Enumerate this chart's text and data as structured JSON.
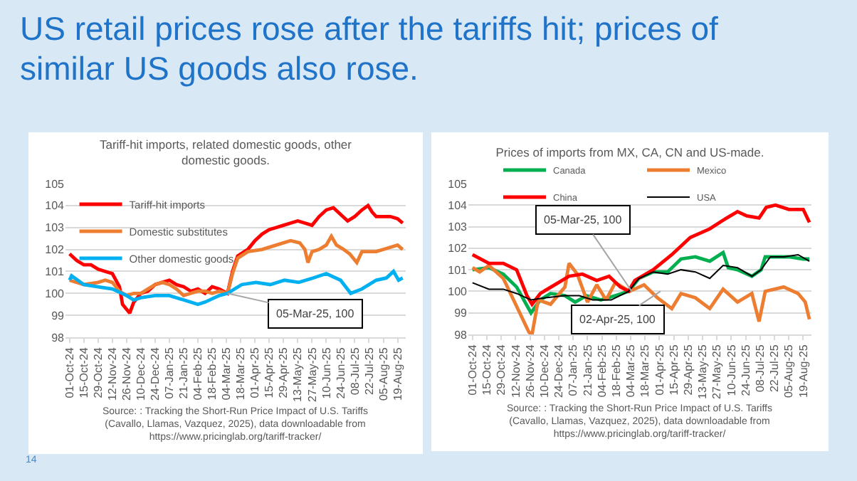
{
  "chart_data": [
    {
      "type": "other",
      "title": "US retail prices rose after the tariffs hit; prices of similar US goods also rose.",
      "annotations": [
        "14"
      ]
    },
    {
      "type": "line",
      "title": "Tariff-hit imports, related domestic goods, other domestic goods.",
      "xlim": [
        "2024-09-27",
        "2025-08-27"
      ],
      "ylim": [
        98,
        105
      ],
      "yticks": [
        98,
        99,
        100,
        101,
        102,
        103,
        104,
        105
      ],
      "xticks": [
        {
          "value": "2024-10-01",
          "label": "01-Oct-24"
        },
        {
          "value": "2024-10-15",
          "label": "15-Oct-24"
        },
        {
          "value": "2024-10-29",
          "label": "29-Oct-24"
        },
        {
          "value": "2024-11-12",
          "label": "12-Nov-24"
        },
        {
          "value": "2024-11-26",
          "label": "26-Nov-24"
        },
        {
          "value": "2024-12-10",
          "label": "10-Dec-24"
        },
        {
          "value": "2024-12-24",
          "label": "24-Dec-24"
        },
        {
          "value": "2025-01-07",
          "label": "07-Jan-25"
        },
        {
          "value": "2025-01-21",
          "label": "21-Jan-25"
        },
        {
          "value": "2025-02-04",
          "label": "04-Feb-25"
        },
        {
          "value": "2025-02-18",
          "label": "18-Feb-25"
        },
        {
          "value": "2025-03-04",
          "label": "04-Mar-25"
        },
        {
          "value": "2025-03-18",
          "label": "18-Mar-25"
        },
        {
          "value": "2025-04-01",
          "label": "01-Apr-25"
        },
        {
          "value": "2025-04-15",
          "label": "15-Apr-25"
        },
        {
          "value": "2025-04-29",
          "label": "29-Apr-25"
        },
        {
          "value": "2025-05-13",
          "label": "13-May-25"
        },
        {
          "value": "2025-05-27",
          "label": "27-May-25"
        },
        {
          "value": "2025-06-10",
          "label": "10-Jun-25"
        },
        {
          "value": "2025-06-24",
          "label": "24-Jun-25"
        },
        {
          "value": "2025-07-08",
          "label": "08-Jul-25"
        },
        {
          "value": "2025-07-22",
          "label": "22-Jul-25"
        },
        {
          "value": "2025-08-05",
          "label": "05-Aug-25"
        },
        {
          "value": "2025-08-19",
          "label": "19-Aug-25"
        }
      ],
      "grid": "y",
      "legend": "top left",
      "marker": "none",
      "line_style": "solid",
      "annotations": [
        {
          "text": "05-Mar-25, 100",
          "x": "2025-03-05",
          "y": 100
        },
        "Source: : Tracking the Short-Run Price Impact of U.S. Tariffs (Cavallo, Llamas, Vazquez, 2025), data downloadable from https://www.pricinglab.org/tariff-tracker/"
      ],
      "series": [
        {
          "name": "Tariff-hit imports",
          "color": "#ff0000",
          "x": [
            "2024-10-01",
            "2024-10-08",
            "2024-10-15",
            "2024-10-22",
            "2024-10-29",
            "2024-11-05",
            "2024-11-12",
            "2024-11-19",
            "2024-11-22",
            "2024-11-29",
            "2024-12-03",
            "2024-12-10",
            "2024-12-17",
            "2024-12-24",
            "2024-12-31",
            "2025-01-07",
            "2025-01-14",
            "2025-01-21",
            "2025-01-28",
            "2025-02-04",
            "2025-02-11",
            "2025-02-18",
            "2025-02-25",
            "2025-03-05",
            "2025-03-10",
            "2025-03-15",
            "2025-03-25",
            "2025-04-01",
            "2025-04-08",
            "2025-04-15",
            "2025-04-22",
            "2025-04-29",
            "2025-05-06",
            "2025-05-13",
            "2025-05-20",
            "2025-05-27",
            "2025-06-03",
            "2025-06-10",
            "2025-06-17",
            "2025-06-24",
            "2025-07-01",
            "2025-07-08",
            "2025-07-15",
            "2025-07-21",
            "2025-07-25",
            "2025-07-29",
            "2025-08-05",
            "2025-08-12",
            "2025-08-19",
            "2025-08-24"
          ],
          "values": [
            101.8,
            101.5,
            101.3,
            101.3,
            101.1,
            101.0,
            100.9,
            100.3,
            99.5,
            99.1,
            99.6,
            100.0,
            100.1,
            100.4,
            100.5,
            100.6,
            100.4,
            100.3,
            100.1,
            100.2,
            100.0,
            100.3,
            100.2,
            100.0,
            101.0,
            101.7,
            102.0,
            102.4,
            102.7,
            102.9,
            103.0,
            103.1,
            103.2,
            103.3,
            103.2,
            103.1,
            103.5,
            103.8,
            103.9,
            103.6,
            103.3,
            103.5,
            103.8,
            104.0,
            103.7,
            103.5,
            103.5,
            103.5,
            103.4,
            103.2
          ]
        },
        {
          "name": "Domestic substitutes",
          "color": "#ed7d31",
          "x": [
            "2024-10-01",
            "2024-10-15",
            "2024-10-29",
            "2024-11-05",
            "2024-11-12",
            "2024-11-19",
            "2024-11-26",
            "2024-12-03",
            "2024-12-10",
            "2024-12-17",
            "2024-12-24",
            "2024-12-31",
            "2025-01-07",
            "2025-01-14",
            "2025-01-21",
            "2025-01-28",
            "2025-02-04",
            "2025-02-11",
            "2025-02-18",
            "2025-02-25",
            "2025-03-05",
            "2025-03-10",
            "2025-03-15",
            "2025-03-25",
            "2025-04-08",
            "2025-04-22",
            "2025-05-06",
            "2025-05-15",
            "2025-05-20",
            "2025-05-23",
            "2025-05-27",
            "2025-06-03",
            "2025-06-10",
            "2025-06-15",
            "2025-06-20",
            "2025-06-27",
            "2025-07-03",
            "2025-07-10",
            "2025-07-15",
            "2025-07-29",
            "2025-08-12",
            "2025-08-19",
            "2025-08-24"
          ],
          "values": [
            100.6,
            100.4,
            100.5,
            100.6,
            100.5,
            100.1,
            99.9,
            100.0,
            100.0,
            100.2,
            100.4,
            100.5,
            100.4,
            100.2,
            99.9,
            100.0,
            100.1,
            100.1,
            100.0,
            100.1,
            100.0,
            100.9,
            101.6,
            101.9,
            102.0,
            102.2,
            102.4,
            102.3,
            102.0,
            101.4,
            101.9,
            102.0,
            102.2,
            102.6,
            102.2,
            102.0,
            101.8,
            101.4,
            101.9,
            101.9,
            102.1,
            102.2,
            102.0
          ]
        },
        {
          "name": "Other domestic goods",
          "color": "#00b0f0",
          "x": [
            "2024-10-01",
            "2024-10-03",
            "2024-10-15",
            "2024-10-29",
            "2024-11-12",
            "2024-11-26",
            "2024-12-03",
            "2024-12-10",
            "2024-12-24",
            "2025-01-07",
            "2025-01-21",
            "2025-02-04",
            "2025-02-11",
            "2025-02-25",
            "2025-03-05",
            "2025-03-19",
            "2025-04-02",
            "2025-04-16",
            "2025-04-30",
            "2025-05-14",
            "2025-05-28",
            "2025-06-10",
            "2025-06-24",
            "2025-07-04",
            "2025-07-15",
            "2025-07-29",
            "2025-08-08",
            "2025-08-15",
            "2025-08-20",
            "2025-08-24"
          ],
          "values": [
            100.6,
            100.8,
            100.4,
            100.3,
            100.2,
            99.9,
            99.7,
            99.8,
            99.9,
            99.9,
            99.7,
            99.5,
            99.6,
            99.9,
            100.0,
            100.4,
            100.5,
            100.4,
            100.6,
            100.5,
            100.7,
            100.9,
            100.6,
            100.0,
            100.2,
            100.6,
            100.7,
            101.0,
            100.6,
            100.7
          ]
        }
      ]
    },
    {
      "type": "line",
      "title": "Prices of imports from MX, CA, CN and US-made.",
      "xlim": [
        "2024-09-27",
        "2025-08-27"
      ],
      "ylim": [
        98,
        105
      ],
      "yticks": [
        98,
        99,
        100,
        101,
        102,
        103,
        104,
        105
      ],
      "xticks": [
        {
          "value": "2024-10-01",
          "label": "01-Oct-24"
        },
        {
          "value": "2024-10-15",
          "label": "15-Oct-24"
        },
        {
          "value": "2024-10-29",
          "label": "29-Oct-24"
        },
        {
          "value": "2024-11-12",
          "label": "12-Nov-24"
        },
        {
          "value": "2024-11-26",
          "label": "26-Nov-24"
        },
        {
          "value": "2024-12-10",
          "label": "10-Dec-24"
        },
        {
          "value": "2024-12-24",
          "label": "24-Dec-24"
        },
        {
          "value": "2025-01-07",
          "label": "07-Jan-25"
        },
        {
          "value": "2025-01-21",
          "label": "21-Jan-25"
        },
        {
          "value": "2025-02-04",
          "label": "04-Feb-25"
        },
        {
          "value": "2025-02-18",
          "label": "18-Feb-25"
        },
        {
          "value": "2025-03-04",
          "label": "04-Mar-25"
        },
        {
          "value": "2025-03-18",
          "label": "18-Mar-25"
        },
        {
          "value": "2025-04-01",
          "label": "01-Apr-25"
        },
        {
          "value": "2025-04-15",
          "label": "15-Apr-25"
        },
        {
          "value": "2025-04-29",
          "label": "29-Apr-25"
        },
        {
          "value": "2025-05-13",
          "label": "13-May-25"
        },
        {
          "value": "2025-05-27",
          "label": "27-May-25"
        },
        {
          "value": "2025-06-10",
          "label": "10-Jun-25"
        },
        {
          "value": "2025-06-24",
          "label": "24-Jun-25"
        },
        {
          "value": "2025-07-08",
          "label": "08-Jul-25"
        },
        {
          "value": "2025-07-22",
          "label": "22-Jul-25"
        },
        {
          "value": "2025-08-05",
          "label": "05-Aug-25"
        },
        {
          "value": "2025-08-19",
          "label": "19-Aug-25"
        }
      ],
      "grid": "y",
      "legend": "top",
      "marker": "none",
      "line_style": "solid",
      "annotations": [
        {
          "text": "05-Mar-25, 100",
          "x": "2025-03-05",
          "y": 100
        },
        {
          "text": "02-Apr-25, 100",
          "x": "2025-04-02",
          "y": 100
        },
        "Source: : Tracking the Short-Run Price Impact of U.S. Tariffs (Cavallo, Llamas, Vazquez, 2025), data downloadable from https://www.pricinglab.org/tariff-tracker/"
      ],
      "series": [
        {
          "name": "Canada",
          "color": "#00b050",
          "x": [
            "2024-10-01",
            "2024-10-17",
            "2024-10-31",
            "2024-11-13",
            "2024-11-27",
            "2024-12-06",
            "2024-12-16",
            "2024-12-30",
            "2025-01-09",
            "2025-01-20",
            "2025-02-03",
            "2025-02-17",
            "2025-03-02",
            "2025-03-12",
            "2025-03-26",
            "2025-04-09",
            "2025-04-22",
            "2025-05-06",
            "2025-05-20",
            "2025-06-02",
            "2025-06-07",
            "2025-06-16",
            "2025-06-30",
            "2025-07-09",
            "2025-07-13",
            "2025-07-23",
            "2025-08-05",
            "2025-08-19",
            "2025-08-25"
          ],
          "values": [
            101.0,
            101.1,
            100.8,
            100.2,
            99.0,
            99.6,
            99.9,
            99.8,
            99.5,
            99.8,
            99.6,
            99.8,
            100.0,
            100.6,
            100.9,
            100.9,
            101.5,
            101.6,
            101.4,
            101.8,
            101.1,
            101.0,
            100.7,
            101.0,
            101.6,
            101.6,
            101.6,
            101.5,
            101.5
          ]
        },
        {
          "name": "Mexico",
          "color": "#ed7d31",
          "x": [
            "2024-10-01",
            "2024-10-08",
            "2024-10-17",
            "2024-10-31",
            "2024-11-09",
            "2024-11-18",
            "2024-11-25",
            "2024-11-28",
            "2024-12-04",
            "2024-12-16",
            "2024-12-30",
            "2025-01-03",
            "2025-01-11",
            "2025-01-21",
            "2025-01-30",
            "2025-02-08",
            "2025-02-17",
            "2025-03-03",
            "2025-03-17",
            "2025-03-30",
            "2025-04-13",
            "2025-04-22",
            "2025-05-06",
            "2025-05-20",
            "2025-06-02",
            "2025-06-16",
            "2025-06-30",
            "2025-07-07",
            "2025-07-13",
            "2025-07-31",
            "2025-08-14",
            "2025-08-21",
            "2025-08-25"
          ],
          "values": [
            101.1,
            100.9,
            101.2,
            100.6,
            99.7,
            98.8,
            98.1,
            98.0,
            99.6,
            99.4,
            100.2,
            101.3,
            100.8,
            99.5,
            100.3,
            99.6,
            100.4,
            100.0,
            100.3,
            99.7,
            99.2,
            99.9,
            99.7,
            99.2,
            100.1,
            99.5,
            99.9,
            98.6,
            100.0,
            100.2,
            99.9,
            99.5,
            98.7
          ]
        },
        {
          "name": "China",
          "color": "#ff0000",
          "x": [
            "2024-10-01",
            "2024-10-17",
            "2024-10-31",
            "2024-11-13",
            "2024-11-23",
            "2024-11-28",
            "2024-12-06",
            "2024-12-20",
            "2025-01-03",
            "2025-01-16",
            "2025-01-30",
            "2025-02-11",
            "2025-02-22",
            "2025-03-02",
            "2025-03-08",
            "2025-03-26",
            "2025-04-13",
            "2025-05-01",
            "2025-05-20",
            "2025-06-02",
            "2025-06-16",
            "2025-06-25",
            "2025-07-07",
            "2025-07-14",
            "2025-07-23",
            "2025-08-05",
            "2025-08-19",
            "2025-08-25"
          ],
          "values": [
            101.7,
            101.3,
            101.3,
            101.0,
            99.8,
            99.4,
            99.9,
            100.3,
            100.7,
            100.8,
            100.5,
            100.7,
            100.2,
            100.0,
            100.5,
            101.0,
            101.7,
            102.5,
            102.9,
            103.3,
            103.7,
            103.5,
            103.4,
            103.9,
            104.0,
            103.8,
            103.8,
            103.2
          ]
        },
        {
          "name": "USA",
          "color": "#000000",
          "x": [
            "2024-10-01",
            "2024-10-17",
            "2024-10-31",
            "2024-11-13",
            "2024-11-27",
            "2024-12-11",
            "2024-12-30",
            "2025-01-13",
            "2025-01-26",
            "2025-02-13",
            "2025-02-26",
            "2025-03-02",
            "2025-03-12",
            "2025-03-26",
            "2025-04-09",
            "2025-04-22",
            "2025-05-06",
            "2025-05-20",
            "2025-06-02",
            "2025-06-16",
            "2025-06-30",
            "2025-07-09",
            "2025-07-18",
            "2025-07-31",
            "2025-08-14",
            "2025-08-25"
          ],
          "values": [
            100.4,
            100.1,
            100.1,
            99.9,
            99.6,
            99.7,
            99.8,
            99.8,
            99.6,
            99.6,
            99.9,
            100.0,
            100.6,
            100.9,
            100.8,
            101.0,
            100.9,
            100.6,
            101.2,
            101.1,
            100.7,
            101.0,
            101.6,
            101.6,
            101.7,
            101.4
          ]
        }
      ]
    }
  ]
}
